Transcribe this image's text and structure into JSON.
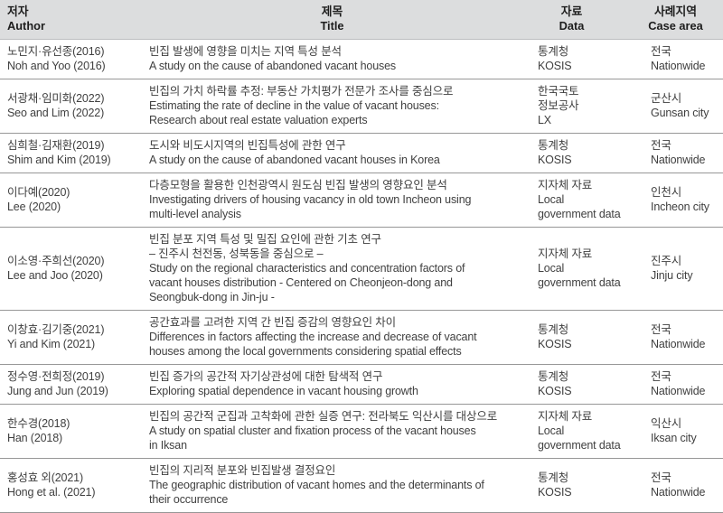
{
  "table": {
    "headers": [
      {
        "ko": "저자",
        "en": "Author"
      },
      {
        "ko": "제목",
        "en": "Title"
      },
      {
        "ko": "자료",
        "en": "Data"
      },
      {
        "ko": "사례지역",
        "en": "Case area"
      }
    ],
    "rows": [
      {
        "author": [
          "노민지·유선종(2016)",
          "Noh and Yoo (2016)"
        ],
        "title": [
          "빈집 발생에 영향을 미치는 지역 특성 분석",
          "A study on the cause of abandoned vacant houses"
        ],
        "data": [
          "통계청",
          "KOSIS"
        ],
        "area": [
          "전국",
          "Nationwide"
        ]
      },
      {
        "author": [
          "서광채·임미화(2022)",
          "Seo and Lim (2022)"
        ],
        "title": [
          "빈집의 가치 하락률 추정: 부동산 가치평가 전문가 조사를 중심으로",
          "Estimating the rate of decline in the value of vacant houses:",
          "Research about real estate valuation experts"
        ],
        "data": [
          "한국국토",
          "정보공사",
          "LX"
        ],
        "area": [
          "군산시",
          "Gunsan city"
        ]
      },
      {
        "author": [
          "심희철·김재환(2019)",
          "Shim and Kim (2019)"
        ],
        "title": [
          "도시와 비도시지역의 빈집특성에 관한 연구",
          "A study on the cause of abandoned vacant houses in Korea"
        ],
        "data": [
          "통계청",
          "KOSIS"
        ],
        "area": [
          "전국",
          "Nationwide"
        ]
      },
      {
        "author": [
          "이다예(2020)",
          "Lee (2020)"
        ],
        "title": [
          "다층모형을 활용한 인천광역시 원도심 빈집 발생의 영향요인 분석",
          "Investigating drivers of housing vacancy in old town Incheon using",
          "multi-level analysis"
        ],
        "data": [
          "지자체 자료",
          "Local",
          "government data"
        ],
        "area": [
          "인천시",
          "Incheon city"
        ]
      },
      {
        "author": [
          "이소영·주희선(2020)",
          "Lee and Joo (2020)"
        ],
        "title": [
          "빈집 분포 지역 특성 및 밀집 요인에 관한 기초 연구",
          "– 진주시 천전동, 성북동을 중심으로 –",
          "Study on the regional characteristics and concentration factors of",
          "vacant houses distribution - Centered on Cheonjeon-dong and",
          "Seongbuk-dong in Jin-ju -"
        ],
        "data": [
          "지자체 자료",
          "Local",
          "government data"
        ],
        "area": [
          "진주시",
          "Jinju city"
        ]
      },
      {
        "author": [
          "이창효·김기중(2021)",
          "Yi and Kim (2021)"
        ],
        "title": [
          "공간효과를 고려한 지역 간 빈집 증감의 영향요인 차이",
          "Differences in factors affecting the increase and decrease of vacant",
          "houses among the local governments considering spatial effects"
        ],
        "data": [
          "통계청",
          "KOSIS"
        ],
        "area": [
          "전국",
          "Nationwide"
        ]
      },
      {
        "author": [
          "정수영·전희정(2019)",
          "Jung and Jun (2019)"
        ],
        "title": [
          "빈집 증가의 공간적 자기상관성에 대한 탐색적 연구",
          "Exploring spatial dependence in vacant housing growth"
        ],
        "data": [
          "통계청",
          "KOSIS"
        ],
        "area": [
          "전국",
          "Nationwide"
        ]
      },
      {
        "author": [
          "한수경(2018)",
          "Han (2018)"
        ],
        "title": [
          "빈집의 공간적 군집과 고착화에 관한 실증 연구: 전라북도 익산시를 대상으로",
          "A study on spatial cluster and fixation process of the vacant houses",
          "in Iksan"
        ],
        "data": [
          "지자체 자료",
          "Local",
          "government data"
        ],
        "area": [
          "익산시",
          "Iksan city"
        ]
      },
      {
        "author": [
          "홍성효 외(2021)",
          "Hong et al. (2021)"
        ],
        "title": [
          "빈집의 지리적 분포와 빈집발생 결정요인",
          "The geographic distribution of vacant homes and the determinants of",
          "their occurrence"
        ],
        "data": [
          "통계청",
          "KOSIS"
        ],
        "area": [
          "전국",
          "Nationwide"
        ]
      }
    ]
  },
  "colors": {
    "header_background": "#dcddde",
    "header_text": "#1d1d1d",
    "body_text": "#404040",
    "row_divider": "#979797"
  }
}
